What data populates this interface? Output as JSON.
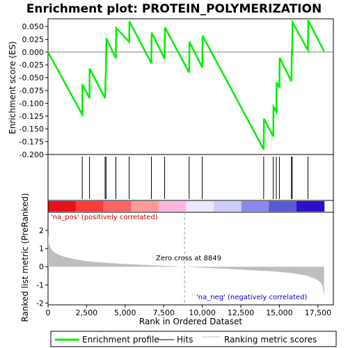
{
  "chart_data": {
    "type": "line",
    "title": "Enrichment plot: PROTEIN_POLYMERIZATION",
    "top_panel": {
      "ylabel": "Enrichment score (ES)",
      "ylim": [
        -0.2,
        0.065
      ],
      "yticks": [
        "0.050",
        "0.025",
        "0.000",
        "-0.025",
        "-0.050",
        "-0.075",
        "-0.100",
        "-0.125",
        "-0.150",
        "-0.175",
        "-0.200"
      ],
      "ytick_values": [
        0.05,
        0.025,
        0.0,
        -0.025,
        -0.05,
        -0.075,
        -0.1,
        -0.125,
        -0.15,
        -0.175,
        -0.2
      ],
      "series": [
        {
          "name": "Enrichment profile",
          "color": "#00ee00",
          "x": [
            0,
            2220,
            2230,
            2690,
            2700,
            3700,
            3720,
            3760,
            3780,
            4400,
            4420,
            5260,
            5280,
            6700,
            6720,
            7560,
            7580,
            9150,
            9170,
            10000,
            10020,
            13980,
            14000,
            14600,
            14620,
            14800,
            14820,
            15000,
            15020,
            15780,
            15800,
            15830,
            15850,
            16850,
            16870,
            17900
          ],
          "y": [
            0.0,
            -0.122,
            -0.063,
            -0.09,
            -0.032,
            -0.09,
            -0.062,
            -0.032,
            0.027,
            -0.012,
            0.047,
            0.02,
            0.06,
            -0.022,
            0.038,
            -0.013,
            0.048,
            -0.04,
            0.02,
            -0.03,
            0.032,
            -0.19,
            -0.13,
            -0.165,
            -0.107,
            -0.117,
            -0.059,
            -0.07,
            -0.011,
            -0.057,
            0.0,
            -0.001,
            0.058,
            0.004,
            0.062,
            0.001
          ]
        }
      ]
    },
    "hits": [
      2220,
      2690,
      3700,
      3760,
      4400,
      5260,
      6700,
      7560,
      9150,
      10000,
      13980,
      14600,
      14800,
      15000,
      15780,
      15830,
      16850
    ],
    "heatmap_band": {
      "colors": [
        "#e8101a",
        "#ff3a3a",
        "#ff6464",
        "#ff9a9a",
        "#ffb7e0",
        "#ece6ff",
        "#ccccff",
        "#8888ee",
        "#5a5ad8",
        "#2a10c8"
      ]
    },
    "bottom_panel": {
      "ylabel": "Ranked list metric (PreRanked)",
      "xlabel": "Rank in Ordered Dataset",
      "ylim": [
        -2.1,
        3.0
      ],
      "yticks": [
        "2",
        "1",
        "0",
        "-1",
        "-2"
      ],
      "ytick_values": [
        2,
        1,
        0,
        -1,
        -2
      ],
      "xlim": [
        0,
        18500
      ],
      "xticks": [
        "0",
        "2,500",
        "5,000",
        "7,500",
        "10,000",
        "12,500",
        "15,000",
        "17,500"
      ],
      "xtick_values": [
        0,
        2500,
        5000,
        7500,
        10000,
        12500,
        15000,
        17500
      ],
      "metric_x": [
        0,
        50,
        150,
        300,
        500,
        800,
        1200,
        1800,
        2500,
        3500,
        5000,
        7000,
        8849,
        10500,
        12500,
        14500,
        15800,
        16800,
        17300,
        17650,
        17800,
        17880,
        17900
      ],
      "metric_y": [
        1.75,
        1.3,
        1.05,
        0.88,
        0.75,
        0.62,
        0.52,
        0.4,
        0.31,
        0.23,
        0.15,
        0.07,
        0.0,
        -0.07,
        -0.16,
        -0.25,
        -0.35,
        -0.5,
        -0.65,
        -0.85,
        -1.05,
        -1.5,
        -1.9
      ],
      "fill_color": "#bebebe",
      "zero_cross": 8849,
      "zero_cross_label": "Zero cross at 8849",
      "pos_label": "'na_pos' (positively correlated)",
      "neg_label": "'na_neg' (negatively correlated)"
    },
    "legend": [
      {
        "label": "Enrichment profile",
        "color": "#00ee00",
        "style": "thick-line"
      },
      {
        "label": "Hits",
        "color": "#000000",
        "style": "line"
      },
      {
        "label": "Ranking metric scores",
        "color": "#bebebe",
        "style": "line"
      }
    ],
    "grid": false,
    "legend_position": "bottom"
  }
}
